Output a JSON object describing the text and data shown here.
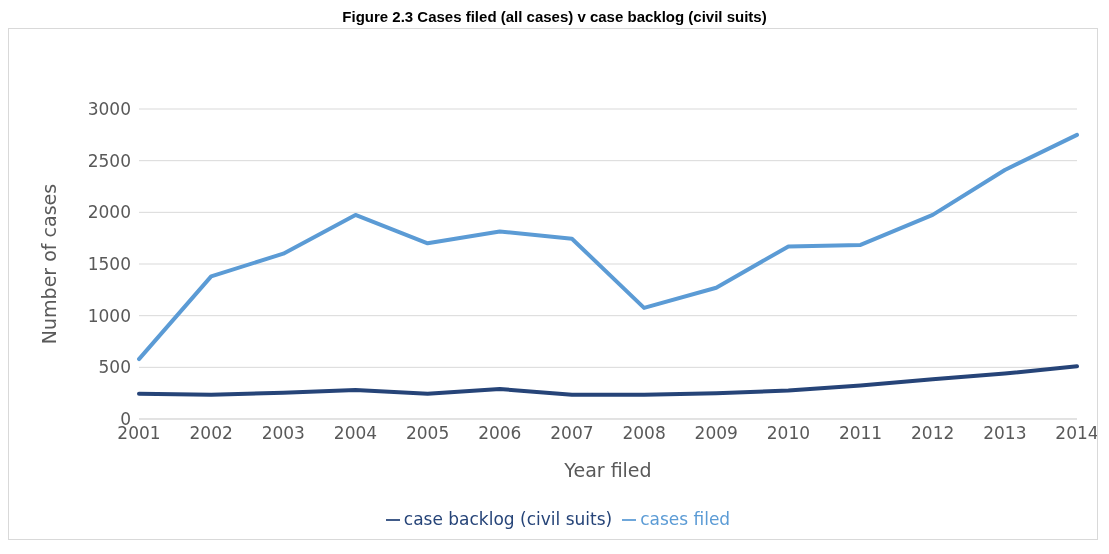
{
  "chart_data": {
    "type": "line",
    "title": "Figure 2.3 Cases filed (all cases) v case backlog (civil suits)",
    "xlabel": "Year filed",
    "ylabel": "Number of cases",
    "categories": [
      "2001",
      "2002",
      "2003",
      "2004",
      "2005",
      "2006",
      "2007",
      "2008",
      "2009",
      "2010",
      "2011",
      "2012",
      "2013",
      "2014"
    ],
    "series": [
      {
        "name": "cases filed",
        "color": "#5b9bd5",
        "values": [
          580,
          1380,
          1600,
          1975,
          1700,
          1815,
          1745,
          1075,
          1270,
          1670,
          1685,
          1975,
          2410,
          2750
        ]
      },
      {
        "name": "case backlog (civil suits)",
        "color": "#264478",
        "values": [
          245,
          235,
          255,
          280,
          245,
          290,
          235,
          235,
          250,
          275,
          325,
          385,
          440,
          510
        ]
      }
    ],
    "ylim": [
      0,
      3000
    ],
    "yticks": [
      0,
      500,
      1000,
      1500,
      2000,
      2500,
      3000
    ],
    "grid": "y",
    "legend": "bottom",
    "marker": "none",
    "line_style": "solid"
  }
}
